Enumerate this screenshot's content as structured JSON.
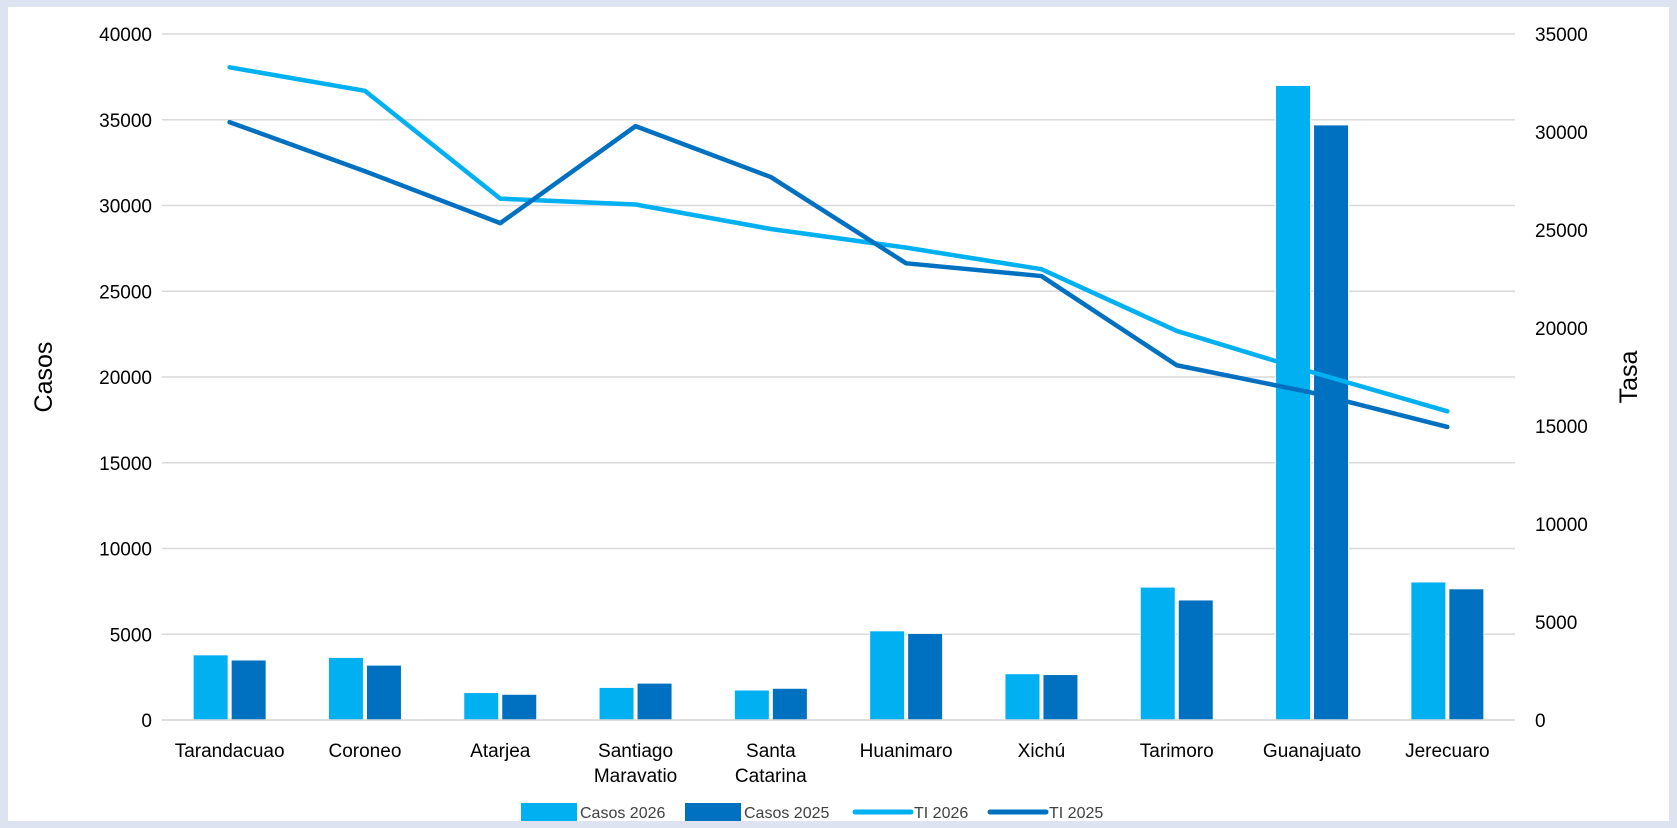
{
  "chart_data": {
    "type": "bar",
    "categories": [
      [
        "Tarandacuao"
      ],
      [
        "Coroneo"
      ],
      [
        "Atarjea"
      ],
      [
        "Santiago",
        "Maravatio"
      ],
      [
        "Santa",
        "Catarina"
      ],
      [
        "Huanimaro"
      ],
      [
        "Xichú"
      ],
      [
        "Tarimoro"
      ],
      [
        "Guanajuato"
      ],
      [
        "Jerecuaro"
      ]
    ],
    "bar_series": [
      {
        "name": "Casos 2026",
        "color": "#00b0f0",
        "values": [
          3800,
          3650,
          1600,
          1900,
          1750,
          5200,
          2700,
          7750,
          37000,
          8050
        ]
      },
      {
        "name": "Casos 2025",
        "color": "#0070c0",
        "values": [
          3500,
          3200,
          1500,
          2150,
          1850,
          5050,
          2650,
          7000,
          34700,
          7650
        ]
      }
    ],
    "line_series": [
      {
        "name": "TI 2026",
        "color": "#00b0f0",
        "values": [
          33300,
          32100,
          26600,
          26300,
          25050,
          24100,
          23000,
          19850,
          17750,
          15750
        ]
      },
      {
        "name": "TI 2025",
        "color": "#0070c0",
        "values": [
          30500,
          28000,
          25350,
          30300,
          27700,
          23300,
          22650,
          18100,
          16700,
          14950
        ]
      }
    ],
    "ylabel": "Casos",
    "y2label": "Tasa",
    "ylim": [
      0,
      40000
    ],
    "yticks": [
      "0",
      "5000",
      "10000",
      "15000",
      "20000",
      "25000",
      "30000",
      "35000",
      "40000"
    ],
    "y2lim": [
      0,
      35000
    ],
    "y2ticks": [
      "0",
      "5000",
      "10000",
      "15000",
      "20000",
      "25000",
      "30000",
      "35000"
    ],
    "grid": true,
    "legend_position": "bottom"
  }
}
